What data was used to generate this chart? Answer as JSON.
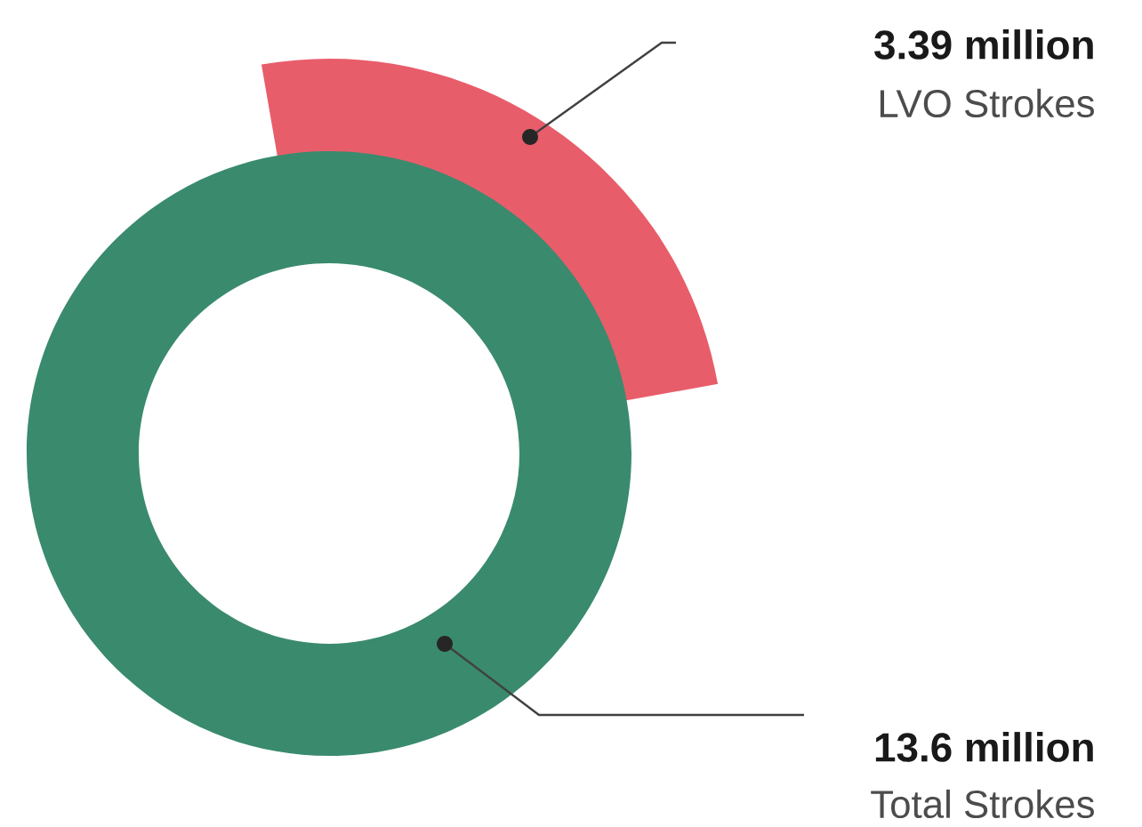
{
  "chart_data": {
    "type": "other",
    "categories": [
      "LVO Strokes",
      "Total Strokes"
    ],
    "values": [
      3.39,
      13.6
    ],
    "value_labels": [
      "3.39 million",
      "13.6 million"
    ],
    "colors": [
      "#e85d6a",
      "#3a8a6e"
    ]
  }
}
